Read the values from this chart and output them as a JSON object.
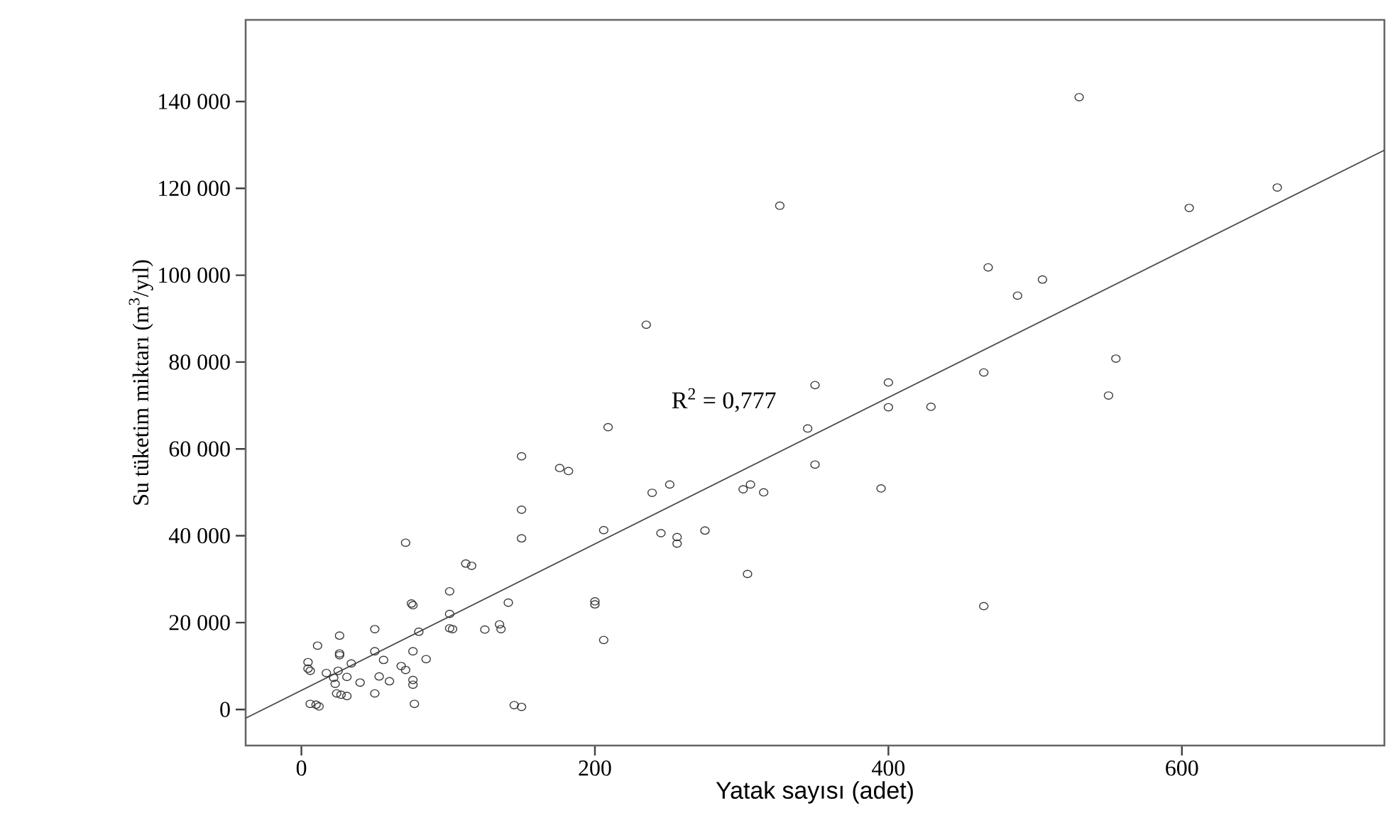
{
  "chart_data": {
    "type": "scatter",
    "xlabel": "Yatak sayısı (adet)",
    "ylabel": "Su tüketim miktarı (m$^{3}$/yıl)",
    "annotations": [
      "R$^{2}$ = 0,777"
    ],
    "xlim": [
      -38,
      738
    ],
    "ylim": [
      -8300,
      158800
    ],
    "xticks": [
      0,
      200,
      400,
      600
    ],
    "yticks": [
      0,
      {
        "value": 20000,
        "label": "20 000"
      },
      {
        "value": 40000,
        "label": "40 000"
      },
      {
        "value": 60000,
        "label": "60 000"
      },
      {
        "value": 80000,
        "label": "80 000"
      },
      {
        "value": 100000,
        "label": "100 000"
      },
      {
        "value": 120000,
        "label": "120 000"
      },
      {
        "value": 140000,
        "label": "140 000"
      }
    ],
    "grid": false,
    "marker": "circle",
    "series": [
      {
        "color": "#3a3a3a",
        "x": [
          530,
          326,
          665,
          605,
          468,
          505,
          488,
          555,
          550,
          465,
          400,
          400,
          429,
          350,
          345,
          235,
          209,
          176,
          182,
          239,
          251,
          301,
          306,
          315,
          350,
          395,
          206,
          245,
          256,
          256,
          275,
          304,
          200,
          200,
          206,
          465,
          150,
          150,
          150,
          71,
          112,
          116,
          101,
          75,
          76,
          141,
          101,
          101,
          103,
          125,
          135,
          136,
          50,
          26,
          11,
          80,
          85,
          76,
          50,
          56,
          26,
          26,
          34,
          4.5,
          4.5,
          6,
          17,
          25,
          31,
          53,
          60,
          68,
          71,
          76,
          76,
          40,
          23,
          24,
          27,
          31,
          50,
          22,
          77,
          6,
          10,
          12,
          145,
          150
        ],
        "values": [
          141000,
          116000,
          120200,
          115500,
          101800,
          99000,
          95300,
          80800,
          72300,
          77600,
          75300,
          69600,
          69700,
          74700,
          64700,
          88600,
          65000,
          55600,
          54900,
          49900,
          51800,
          50700,
          51800,
          50000,
          56400,
          50900,
          41300,
          40600,
          39700,
          38200,
          41200,
          31200,
          24900,
          24200,
          16000,
          23800,
          58300,
          46000,
          39400,
          38400,
          33600,
          33100,
          27200,
          24400,
          24000,
          24600,
          22000,
          18700,
          18500,
          18400,
          19600,
          18500,
          18500,
          17000,
          14700,
          17900,
          11600,
          13400,
          13400,
          11400,
          12900,
          12500,
          10600,
          10900,
          9400,
          8900,
          8400,
          8900,
          7500,
          7600,
          6500,
          10000,
          9100,
          6800,
          5700,
          6200,
          5900,
          3700,
          3400,
          3100,
          3700,
          7300,
          1300,
          1300,
          1100,
          700,
          1000,
          600
        ]
      },
      {
        "type": "line",
        "color": "#4a4a4a",
        "marker": "none",
        "x": [
          -38,
          738
        ],
        "values": [
          -2000,
          128800
        ]
      }
    ]
  }
}
